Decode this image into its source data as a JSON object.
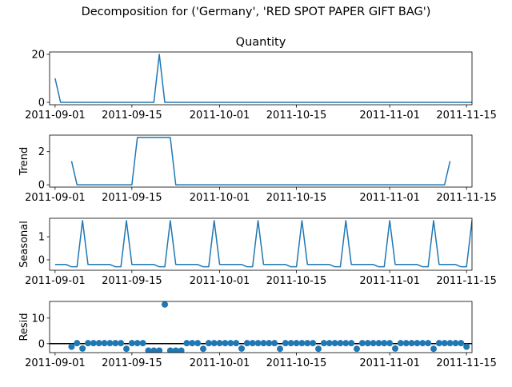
{
  "figure": {
    "title": "Decomposition for ('Germany', 'RED SPOT PAPER GIFT BAG')"
  },
  "colors": {
    "series": "#1f77b4",
    "axis": "#000000",
    "background": "#ffffff"
  },
  "chart_data": [
    {
      "type": "line",
      "title": "Quantity",
      "ylabel": "",
      "x_start": "2011-09-01",
      "x_end": "2011-11-15",
      "xlim": [
        "2011-08-31",
        "2011-11-16"
      ],
      "ylim": [
        -1,
        21
      ],
      "xticks": [
        "2011-09-01",
        "2011-09-15",
        "2011-10-01",
        "2011-10-15",
        "2011-11-01",
        "2011-11-15"
      ],
      "yticks": [
        0,
        20
      ],
      "grid": false,
      "values": [
        10,
        0,
        0,
        0,
        0,
        0,
        0,
        0,
        0,
        0,
        0,
        0,
        0,
        0,
        0,
        0,
        0,
        0,
        0,
        20,
        0,
        0,
        0,
        0,
        0,
        0,
        0,
        0,
        0,
        0,
        0,
        0,
        0,
        0,
        0,
        0,
        0,
        0,
        0,
        0,
        0,
        0,
        0,
        0,
        0,
        0,
        0,
        0,
        0,
        0,
        0,
        0,
        0,
        0,
        0,
        0,
        0,
        0,
        0,
        0,
        0,
        0,
        0,
        0,
        0,
        0,
        0,
        0,
        0,
        0,
        0,
        0,
        0,
        0,
        0,
        0,
        0,
        10
      ]
    },
    {
      "type": "line",
      "title": "",
      "ylabel": "Trend",
      "x_start": "2011-09-04",
      "x_end": "2011-11-12",
      "xlim": [
        "2011-08-31",
        "2011-11-16"
      ],
      "ylim": [
        -0.14,
        3.0
      ],
      "xticks": [
        "2011-09-01",
        "2011-09-15",
        "2011-10-01",
        "2011-10-15",
        "2011-11-01",
        "2011-11-15"
      ],
      "yticks": [
        0,
        2
      ],
      "grid": false,
      "values": [
        1.43,
        0,
        0,
        0,
        0,
        0,
        0,
        0,
        0,
        0,
        0,
        0,
        2.86,
        2.86,
        2.86,
        2.86,
        2.86,
        2.86,
        2.86,
        0,
        0,
        0,
        0,
        0,
        0,
        0,
        0,
        0,
        0,
        0,
        0,
        0,
        0,
        0,
        0,
        0,
        0,
        0,
        0,
        0,
        0,
        0,
        0,
        0,
        0,
        0,
        0,
        0,
        0,
        0,
        0,
        0,
        0,
        0,
        0,
        0,
        0,
        0,
        0,
        0,
        0,
        0,
        0,
        0,
        0,
        0,
        0,
        0,
        0,
        1.43
      ]
    },
    {
      "type": "line",
      "title": "",
      "ylabel": "Seasonal",
      "x_start": "2011-09-01",
      "x_end": "2011-11-15",
      "xlim": [
        "2011-08-31",
        "2011-11-16"
      ],
      "ylim": [
        -0.45,
        1.8
      ],
      "xticks": [
        "2011-09-01",
        "2011-09-15",
        "2011-10-01",
        "2011-10-15",
        "2011-11-01",
        "2011-11-15"
      ],
      "yticks": [
        0,
        1
      ],
      "grid": false,
      "values": [
        -0.2,
        -0.2,
        -0.2,
        -0.3,
        -0.3,
        1.7,
        -0.2,
        -0.2,
        -0.2,
        -0.2,
        -0.2,
        -0.3,
        -0.3,
        1.7,
        -0.2,
        -0.2,
        -0.2,
        -0.2,
        -0.2,
        -0.3,
        -0.3,
        1.7,
        -0.2,
        -0.2,
        -0.2,
        -0.2,
        -0.2,
        -0.3,
        -0.3,
        1.7,
        -0.2,
        -0.2,
        -0.2,
        -0.2,
        -0.2,
        -0.3,
        -0.3,
        1.7,
        -0.2,
        -0.2,
        -0.2,
        -0.2,
        -0.2,
        -0.3,
        -0.3,
        1.7,
        -0.2,
        -0.2,
        -0.2,
        -0.2,
        -0.2,
        -0.3,
        -0.3,
        1.7,
        -0.2,
        -0.2,
        -0.2,
        -0.2,
        -0.2,
        -0.3,
        -0.3,
        1.7,
        -0.2,
        -0.2,
        -0.2,
        -0.2,
        -0.2,
        -0.3,
        -0.3,
        1.7,
        -0.2,
        -0.2,
        -0.2,
        -0.2,
        -0.3,
        -0.3,
        1.7,
        -0.2
      ]
    },
    {
      "type": "scatter",
      "title": "",
      "ylabel": "Resid",
      "x_start": "2011-09-04",
      "x_end": "2011-11-12",
      "xlim": [
        "2011-08-31",
        "2011-11-16"
      ],
      "ylim": [
        -3.5,
        16.5
      ],
      "xticks": [
        "2011-09-01",
        "2011-09-15",
        "2011-10-01",
        "2011-10-15",
        "2011-11-01",
        "2011-11-15"
      ],
      "yticks": [
        0,
        10
      ],
      "baseline": 0,
      "grid": false,
      "values": [
        -1.2,
        0.2,
        -1.9,
        0.2,
        0.2,
        0.2,
        0.2,
        0.2,
        0.2,
        0.2,
        -2,
        0.2,
        0.2,
        0.2,
        -2.7,
        -2.7,
        -2.7,
        15.3,
        -2.7,
        -2.7,
        -2.7,
        0.2,
        0.2,
        0.2,
        -2,
        0.2,
        0.2,
        0.2,
        0.2,
        0.2,
        0.2,
        -1.9,
        0.2,
        0.2,
        0.2,
        0.2,
        0.2,
        0.2,
        -2,
        0.2,
        0.2,
        0.2,
        0.2,
        0.2,
        0.2,
        -2,
        0.2,
        0.2,
        0.2,
        0.2,
        0.2,
        0.2,
        -2,
        0.2,
        0.2,
        0.2,
        0.2,
        0.2,
        0.2,
        -1.9,
        0.2,
        0.2,
        0.2,
        0.2,
        0.2,
        0.2,
        -2,
        0.2,
        0.2,
        0.2,
        0.2,
        0.2,
        -1.2
      ]
    }
  ]
}
